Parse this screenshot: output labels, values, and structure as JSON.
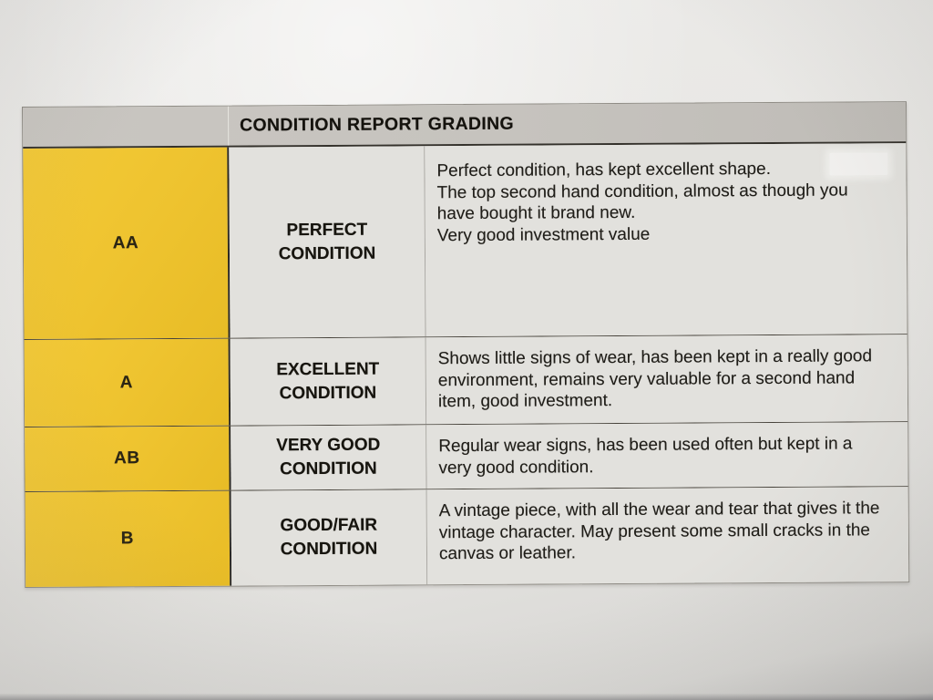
{
  "table": {
    "header": {
      "title": "CONDITION REPORT GRADING"
    },
    "rows": [
      {
        "grade": "AA",
        "condition": "PERFECT CONDITION",
        "description": [
          "Perfect condition, has kept excellent shape.",
          "The top second hand condition, almost as though you have bought it brand new.",
          "Very good investment value"
        ]
      },
      {
        "grade": "A",
        "condition": "EXCELLENT CONDITION",
        "description": [
          "Shows little signs of wear, has been kept in a really good environment, remains very valuable for a second hand item, good investment."
        ]
      },
      {
        "grade": "AB",
        "condition": "VERY GOOD CONDITION",
        "description": [
          "Regular wear signs, has been used often but kept in a very good condition."
        ]
      },
      {
        "grade": "B",
        "condition": "GOOD/FAIR CONDITION",
        "description": [
          "A vintage piece, with all the wear and tear that gives it the vintage character. May present some small cracks in the canvas or leather."
        ]
      }
    ],
    "colors": {
      "grade_cell_yellow": "#eec32f",
      "header_bar_gray": "#c6c3be",
      "cell_background": "#e2e1dd",
      "paper_background": "#e8e7e4",
      "border_dark": "#34312b",
      "text": "#1d1b17"
    }
  }
}
